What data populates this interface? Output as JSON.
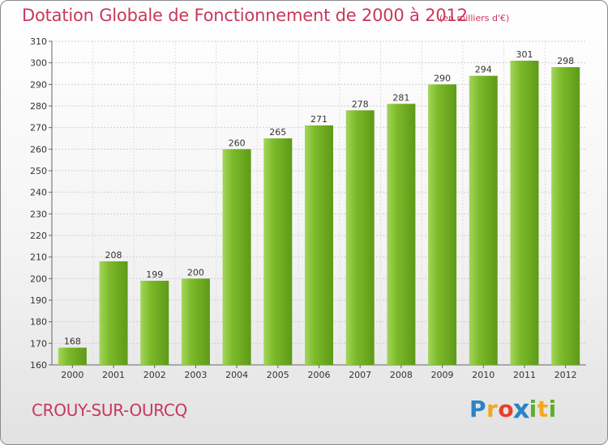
{
  "chart_data": {
    "type": "bar",
    "title": "Dotation Globale de Fonctionnement de 2000 à 2012",
    "unit_note": "(en milliers d'€)",
    "categories": [
      "2000",
      "2001",
      "2002",
      "2003",
      "2004",
      "2005",
      "2006",
      "2007",
      "2008",
      "2009",
      "2010",
      "2011",
      "2012"
    ],
    "values": [
      168,
      208,
      199,
      200,
      260,
      265,
      271,
      278,
      281,
      290,
      294,
      301,
      298
    ],
    "ylim": [
      160,
      310
    ],
    "yticks": [
      160,
      170,
      180,
      190,
      200,
      210,
      220,
      230,
      240,
      250,
      260,
      270,
      280,
      290,
      300,
      310
    ],
    "grid": true,
    "bar_color": "#7cba2a",
    "bar_color_light": "#a4d65a",
    "bar_color_dark": "#5e9a18"
  },
  "footer": {
    "city": "CROUY-SUR-OURCQ"
  },
  "logo": {
    "text": "Proxiti",
    "letters": [
      {
        "char": "P",
        "color": "#2b84c6"
      },
      {
        "char": "r",
        "color": "#f2a81e"
      },
      {
        "char": "o",
        "color": "#e8402c"
      },
      {
        "char": "x",
        "color": "#2b84c6"
      },
      {
        "char": "i",
        "color": "#5cae2f"
      },
      {
        "char": "t",
        "color": "#f2a81e"
      },
      {
        "char": "i",
        "color": "#5cae2f"
      }
    ]
  }
}
